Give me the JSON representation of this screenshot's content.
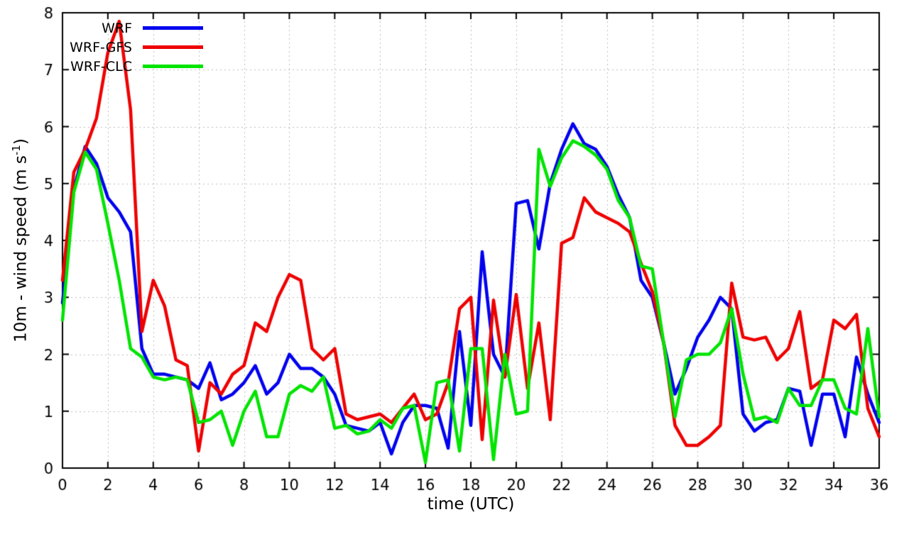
{
  "chart_data": {
    "type": "line",
    "title": "",
    "xlabel": "time (UTC)",
    "ylabel": "10m - wind speed (m s⁻¹)",
    "ylabel_prefix": "10m - wind speed  (m s",
    "ylabel_sup": "-1",
    "ylabel_suffix": ")",
    "xlim": [
      0,
      36
    ],
    "ylim": [
      0,
      8
    ],
    "xticks": [
      0,
      2,
      4,
      6,
      8,
      10,
      12,
      14,
      16,
      18,
      20,
      22,
      24,
      26,
      28,
      30,
      32,
      34,
      36
    ],
    "yticks": [
      0,
      1,
      2,
      3,
      4,
      5,
      6,
      7,
      8
    ],
    "grid": true,
    "grid_color": "#bbbbbb",
    "axis_color": "#000000",
    "legend_position": "top-left",
    "x_step": 0.5,
    "x": [
      0,
      0.5,
      1,
      1.5,
      2,
      2.5,
      3,
      3.5,
      4,
      4.5,
      5,
      5.5,
      6,
      6.5,
      7,
      7.5,
      8,
      8.5,
      9,
      9.5,
      10,
      10.5,
      11,
      11.5,
      12,
      12.5,
      13,
      13.5,
      14,
      14.5,
      15,
      15.5,
      16,
      16.5,
      17,
      17.5,
      18,
      18.5,
      19,
      19.5,
      20,
      20.5,
      21,
      21.5,
      22,
      22.5,
      23,
      23.5,
      24,
      24.5,
      25,
      25.5,
      26,
      26.5,
      27,
      27.5,
      28,
      28.5,
      29,
      29.5,
      30,
      30.5,
      31,
      31.5,
      32,
      32.5,
      33,
      33.5,
      34,
      34.5,
      35,
      35.5,
      36
    ],
    "series": [
      {
        "name": "WRF",
        "color": "#0000ee",
        "values": [
          2.9,
          4.9,
          5.65,
          5.35,
          4.75,
          4.5,
          4.15,
          2.1,
          1.65,
          1.65,
          1.6,
          1.55,
          1.4,
          1.85,
          1.2,
          1.3,
          1.5,
          1.8,
          1.3,
          1.5,
          2.0,
          1.75,
          1.75,
          1.6,
          1.3,
          0.75,
          0.7,
          0.65,
          0.8,
          0.25,
          0.8,
          1.1,
          1.1,
          1.05,
          0.35,
          2.4,
          0.75,
          3.8,
          2.0,
          1.6,
          4.65,
          4.7,
          3.85,
          5.0,
          5.6,
          6.05,
          5.7,
          5.6,
          5.3,
          4.8,
          4.4,
          3.3,
          3.0,
          2.2,
          1.3,
          1.75,
          2.3,
          2.6,
          3.0,
          2.8,
          0.95,
          0.65,
          0.8,
          0.85,
          1.4,
          1.35,
          0.4,
          1.3,
          1.3,
          0.55,
          1.95,
          1.3,
          0.8
        ]
      },
      {
        "name": "WRF-GFS",
        "color": "#ee0000",
        "values": [
          3.3,
          5.2,
          5.6,
          6.15,
          7.3,
          7.85,
          6.3,
          2.4,
          3.3,
          2.85,
          1.9,
          1.8,
          0.3,
          1.5,
          1.3,
          1.65,
          1.8,
          2.55,
          2.4,
          3.0,
          3.4,
          3.3,
          2.1,
          1.9,
          2.1,
          0.95,
          0.85,
          0.9,
          0.95,
          0.8,
          1.05,
          1.3,
          0.85,
          0.95,
          1.5,
          2.8,
          3.0,
          0.5,
          2.95,
          1.6,
          3.05,
          1.4,
          2.55,
          0.85,
          3.95,
          4.05,
          4.75,
          4.5,
          4.4,
          4.3,
          4.15,
          3.6,
          3.1,
          2.2,
          0.75,
          0.4,
          0.4,
          0.55,
          0.75,
          3.25,
          2.3,
          2.25,
          2.3,
          1.9,
          2.1,
          2.75,
          1.4,
          1.55,
          2.6,
          2.45,
          2.7,
          1.05,
          0.55
        ]
      },
      {
        "name": "WRF-CLC",
        "color": "#00e400",
        "values": [
          2.6,
          4.85,
          5.55,
          5.25,
          4.3,
          3.3,
          2.1,
          1.95,
          1.6,
          1.55,
          1.6,
          1.55,
          0.8,
          0.85,
          1.0,
          0.4,
          1.0,
          1.35,
          0.55,
          0.55,
          1.3,
          1.45,
          1.35,
          1.6,
          0.7,
          0.75,
          0.6,
          0.65,
          0.85,
          0.7,
          1.05,
          1.1,
          0.1,
          1.5,
          1.55,
          0.3,
          2.1,
          2.1,
          0.15,
          2.0,
          0.95,
          1.0,
          5.6,
          4.95,
          5.45,
          5.75,
          5.65,
          5.5,
          5.25,
          4.7,
          4.4,
          3.55,
          3.5,
          2.2,
          0.9,
          1.9,
          2.0,
          2.0,
          2.2,
          2.8,
          1.65,
          0.85,
          0.9,
          0.8,
          1.4,
          1.1,
          1.1,
          1.55,
          1.55,
          1.05,
          0.95,
          2.45,
          0.9
        ]
      }
    ]
  }
}
